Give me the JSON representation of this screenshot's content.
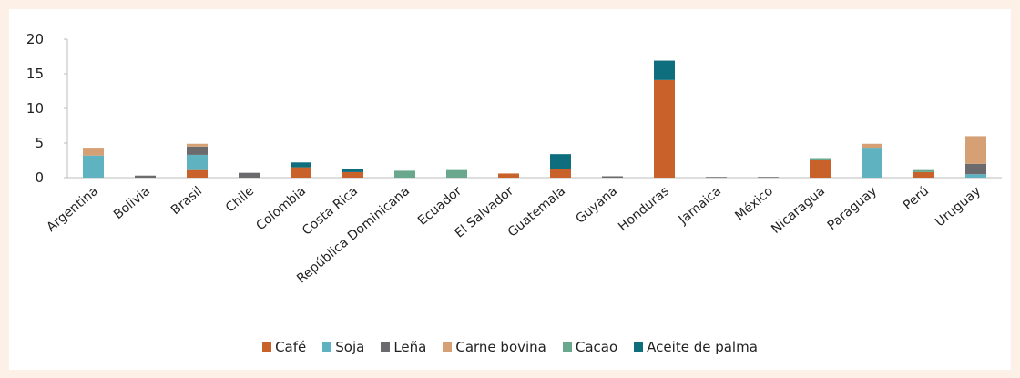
{
  "chart_data": {
    "type": "bar",
    "stacked": true,
    "title": "",
    "xlabel": "",
    "ylabel": "",
    "ylim": [
      0,
      20
    ],
    "yticks": [
      0,
      5,
      10,
      15,
      20
    ],
    "grid": false,
    "legend_position": "bottom",
    "categories": [
      "Argentina",
      "Bolivia",
      "Brasil",
      "Chile",
      "Colombia",
      "Costa Rica",
      "República Dominicana",
      "Ecuador",
      "El Salvador",
      "Guatemala",
      "Guyana",
      "Honduras",
      "Jamaica",
      "México",
      "Nicaragua",
      "Paraguay",
      "Perú",
      "Uruguay"
    ],
    "series": [
      {
        "name": "Café",
        "color": "#c8622a",
        "values": [
          0,
          0,
          1.1,
          0,
          1.5,
          0.8,
          0,
          0,
          0.6,
          1.3,
          0,
          14.1,
          0,
          0,
          2.5,
          0,
          0.8,
          0
        ]
      },
      {
        "name": "Soja",
        "color": "#5fb3c1",
        "values": [
          3.2,
          0,
          2.2,
          0,
          0,
          0,
          0,
          0,
          0,
          0,
          0,
          0,
          0,
          0,
          0,
          4.2,
          0,
          0.5
        ]
      },
      {
        "name": "Leña",
        "color": "#6b6b6e",
        "values": [
          0,
          0.3,
          1.2,
          0.7,
          0,
          0,
          0,
          0,
          0,
          0,
          0.2,
          0,
          0.1,
          0.1,
          0,
          0,
          0,
          1.5
        ]
      },
      {
        "name": "Carne bovina",
        "color": "#d4a074",
        "values": [
          1.0,
          0,
          0.4,
          0,
          0,
          0,
          0,
          0,
          0,
          0,
          0,
          0,
          0,
          0,
          0,
          0.7,
          0,
          4.0
        ]
      },
      {
        "name": "Cacao",
        "color": "#6aa88e",
        "values": [
          0,
          0,
          0,
          0,
          0,
          0,
          1.0,
          1.1,
          0,
          0,
          0,
          0,
          0,
          0,
          0.2,
          0,
          0.3,
          0
        ]
      },
      {
        "name": "Aceite de palma",
        "color": "#0e6e7e",
        "values": [
          0,
          0,
          0,
          0,
          0.7,
          0.4,
          0,
          0,
          0,
          2.1,
          0,
          2.8,
          0,
          0,
          0,
          0,
          0,
          0
        ]
      }
    ]
  }
}
